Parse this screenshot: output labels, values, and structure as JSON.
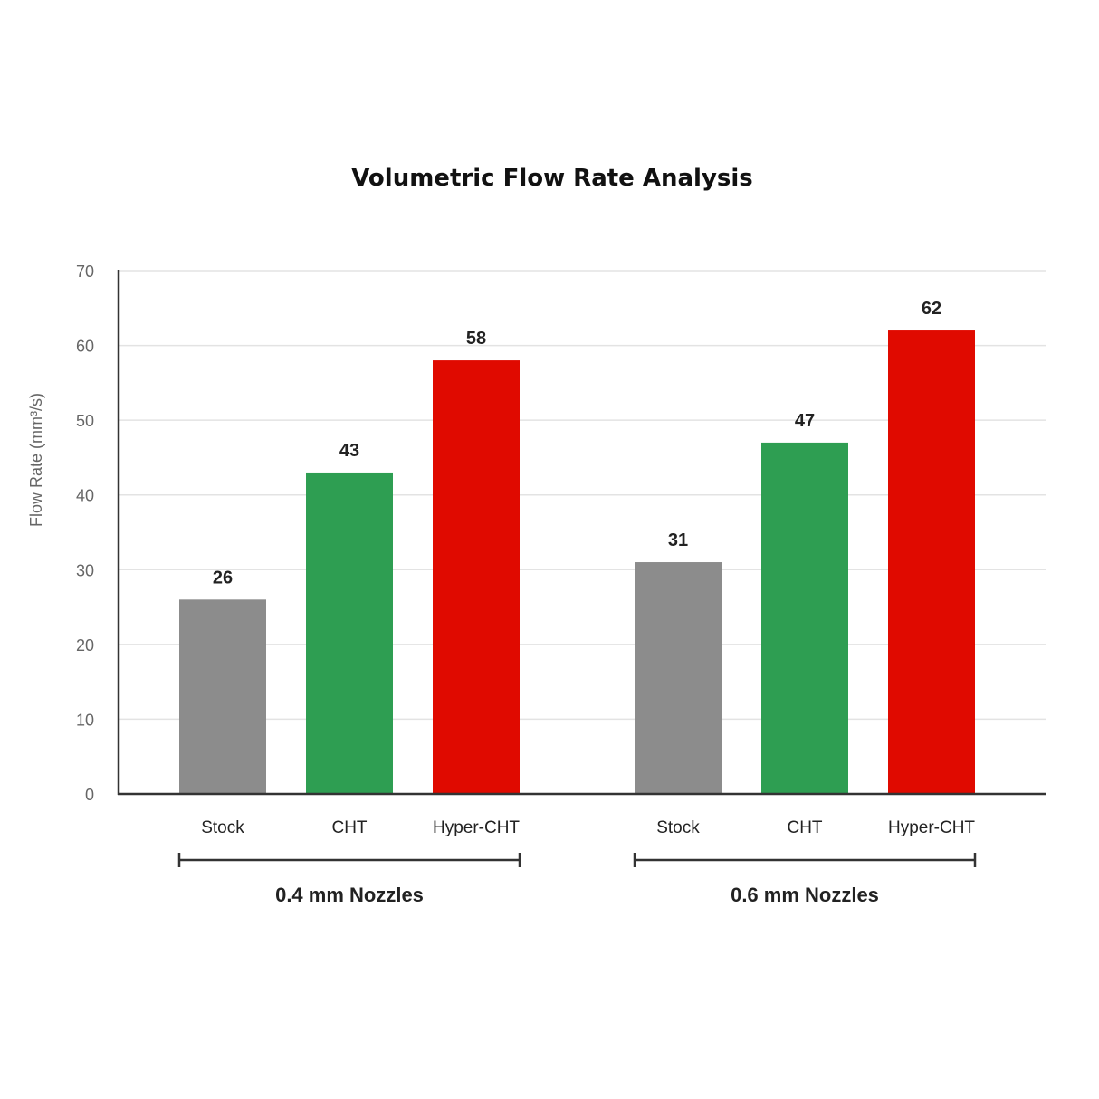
{
  "chart_data": {
    "type": "bar",
    "title": "Volumetric Flow Rate Analysis",
    "ylabel": "Flow Rate (mm³/s)",
    "xlabel": "",
    "ylim": [
      0,
      70
    ],
    "yticks": [
      "0",
      "10",
      "20",
      "30",
      "40",
      "50",
      "60",
      "70"
    ],
    "grid": true,
    "groups": [
      {
        "label": "0.4 mm Nozzles",
        "bars": [
          {
            "category": "Stock",
            "value": 26,
            "color": "#8c8c8c"
          },
          {
            "category": "CHT",
            "value": 43,
            "color": "#2e9e52"
          },
          {
            "category": "Hyper-CHT",
            "value": 58,
            "color": "#e00a00"
          }
        ]
      },
      {
        "label": "0.6 mm Nozzles",
        "bars": [
          {
            "category": "Stock",
            "value": 31,
            "color": "#8c8c8c"
          },
          {
            "category": "CHT",
            "value": 47,
            "color": "#2e9e52"
          },
          {
            "category": "Hyper-CHT",
            "value": 62,
            "color": "#e00a00"
          }
        ]
      }
    ]
  }
}
